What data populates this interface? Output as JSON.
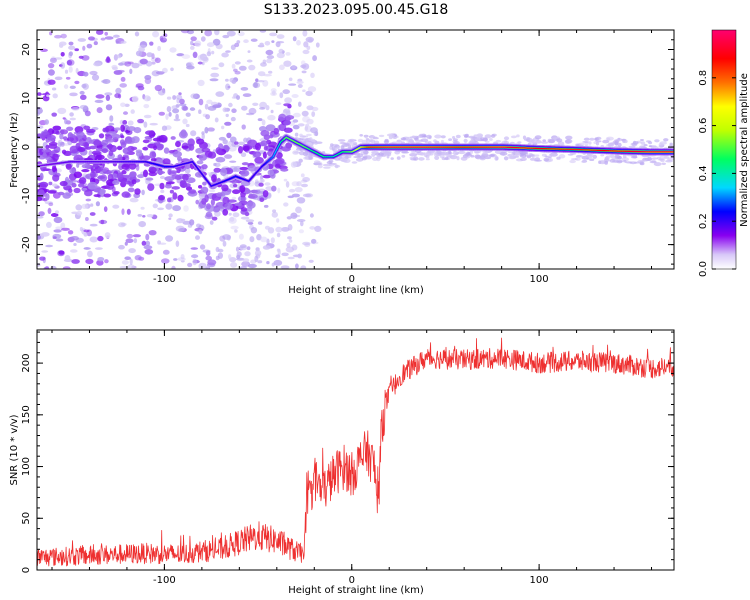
{
  "title": "S133.2023.095.00.45.G18",
  "chart_data": [
    {
      "type": "heatmap",
      "xlabel": "Height of straight line (km)",
      "ylabel": "Frequency (Hz)",
      "xlim": [
        -168,
        172
      ],
      "ylim": [
        -25,
        24
      ],
      "x_ticks": [
        -100,
        0,
        100
      ],
      "y_ticks": [
        -20,
        -10,
        0,
        10,
        20
      ],
      "colorbar": {
        "label": "Normalized spectral amplitude",
        "range": [
          0,
          1
        ],
        "ticks": [
          "0.0",
          "0.2",
          "0.4",
          "0.6",
          "0.8"
        ],
        "colors": [
          "#ffffff",
          "#b09af0",
          "#7800f0",
          "#0000ff",
          "#00c8ff",
          "#00ff66",
          "#ffff00",
          "#ff7800",
          "#ff0000",
          "#ff0066"
        ]
      },
      "ridge": {
        "x": [
          -170,
          -150,
          -130,
          -110,
          -100,
          -95,
          -85,
          -75,
          -68,
          -62,
          -55,
          -48,
          -42,
          -38,
          -35,
          -30,
          -25,
          -20,
          -15,
          -10,
          -5,
          0,
          5,
          10,
          20,
          40,
          60,
          80,
          100,
          120,
          140,
          160,
          172
        ],
        "y": [
          -4,
          -3,
          -3,
          -3,
          -4,
          -4,
          -3,
          -8,
          -7,
          -6,
          -7,
          -4,
          -2,
          1,
          2,
          1,
          0,
          -1,
          -2,
          -2,
          -1,
          -1,
          0,
          0,
          0,
          0,
          0,
          0,
          -0.3,
          -0.5,
          -0.8,
          -1,
          -1
        ],
        "amplitude": [
          0.2,
          0.25,
          0.25,
          0.3,
          0.35,
          0.3,
          0.3,
          0.3,
          0.32,
          0.35,
          0.3,
          0.3,
          0.4,
          0.5,
          0.6,
          0.6,
          0.6,
          0.55,
          0.55,
          0.5,
          0.55,
          0.6,
          0.7,
          0.9,
          0.95,
          0.95,
          0.9,
          0.95,
          0.9,
          0.85,
          0.9,
          0.95,
          0.95
        ]
      }
    },
    {
      "type": "line",
      "xlabel": "Height of straight line (km)",
      "ylabel": "SNR (10 * v/v)",
      "xlim": [
        -168,
        172
      ],
      "ylim": [
        0,
        232
      ],
      "x_ticks": [
        -100,
        0,
        100
      ],
      "y_ticks": [
        0,
        50,
        100,
        150,
        200
      ],
      "color": "#ee3030",
      "x": [
        -168,
        -140,
        -110,
        -90,
        -80,
        -70,
        -60,
        -50,
        -40,
        -30,
        -26,
        -24,
        -20,
        -16,
        -12,
        -8,
        -4,
        0,
        4,
        8,
        12,
        14,
        16,
        18,
        20,
        26,
        40,
        60,
        80,
        100,
        120,
        140,
        160,
        172
      ],
      "y": [
        12,
        14,
        16,
        15,
        18,
        20,
        27,
        33,
        28,
        18,
        15,
        55,
        90,
        75,
        85,
        95,
        100,
        92,
        105,
        115,
        100,
        60,
        140,
        160,
        170,
        188,
        205,
        203,
        205,
        200,
        202,
        200,
        195,
        197
      ]
    }
  ]
}
